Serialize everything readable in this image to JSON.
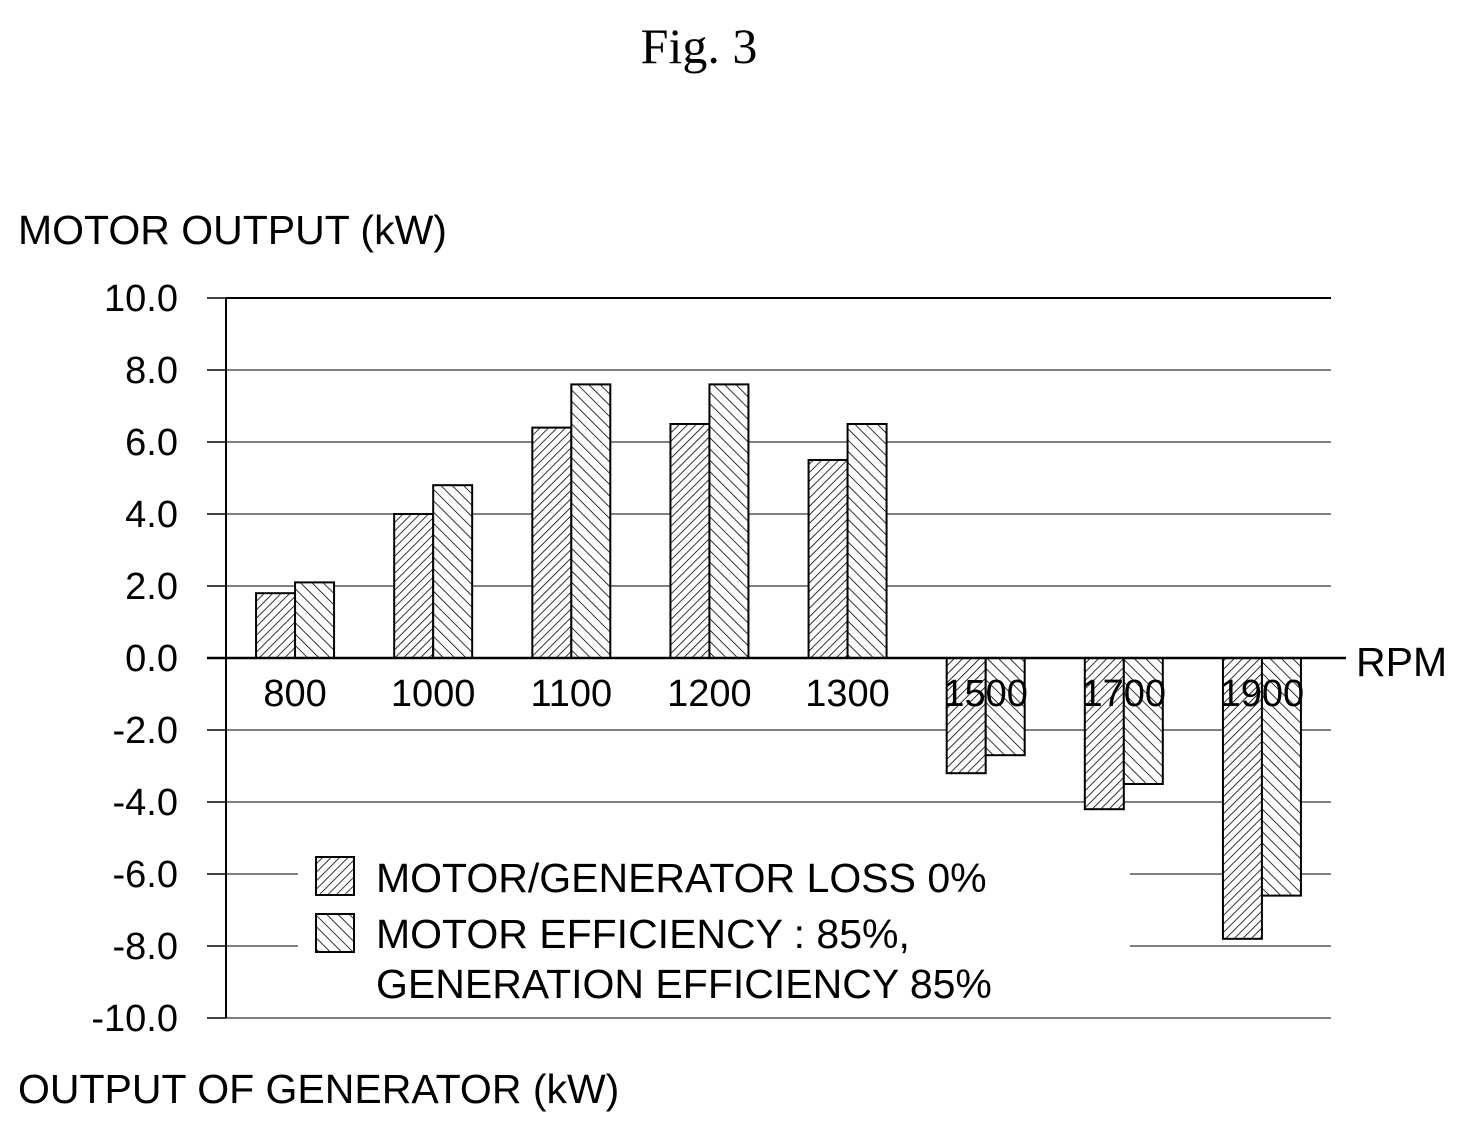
{
  "figure_title": "Fig. 3",
  "chart_data": {
    "type": "bar",
    "ylabel": "MOTOR OUTPUT (kW)",
    "ylabel_bottom": "OUTPUT OF GENERATOR (kW)",
    "xlabel": "RPM",
    "ylim": [
      -10,
      10
    ],
    "y_ticks": [
      "10.0",
      "8.0",
      "6.0",
      "4.0",
      "2.0",
      "0.0",
      "-2.0",
      "-4.0",
      "-6.0",
      "-8.0",
      "-10.0"
    ],
    "y_tick_values": [
      10,
      8,
      6,
      4,
      2,
      0,
      -2,
      -4,
      -6,
      -8,
      -10
    ],
    "categories": [
      "800",
      "1000",
      "1100",
      "1200",
      "1300",
      "1500",
      "1700",
      "1900"
    ],
    "grid": true,
    "legend_position": "bottom-center",
    "series": [
      {
        "name": "MOTOR/GENERATOR LOSS 0%",
        "pattern": "dense-hatch",
        "values": [
          1.8,
          4.0,
          6.4,
          6.5,
          5.5,
          -3.2,
          -4.2,
          -7.8
        ]
      },
      {
        "name": "MOTOR EFFICIENCY : 85%,",
        "name_line2": "GENERATION EFFICIENCY 85%",
        "pattern": "sparse-hatch",
        "values": [
          2.1,
          4.8,
          7.6,
          7.6,
          6.5,
          -2.7,
          -3.5,
          -6.6
        ]
      }
    ]
  }
}
